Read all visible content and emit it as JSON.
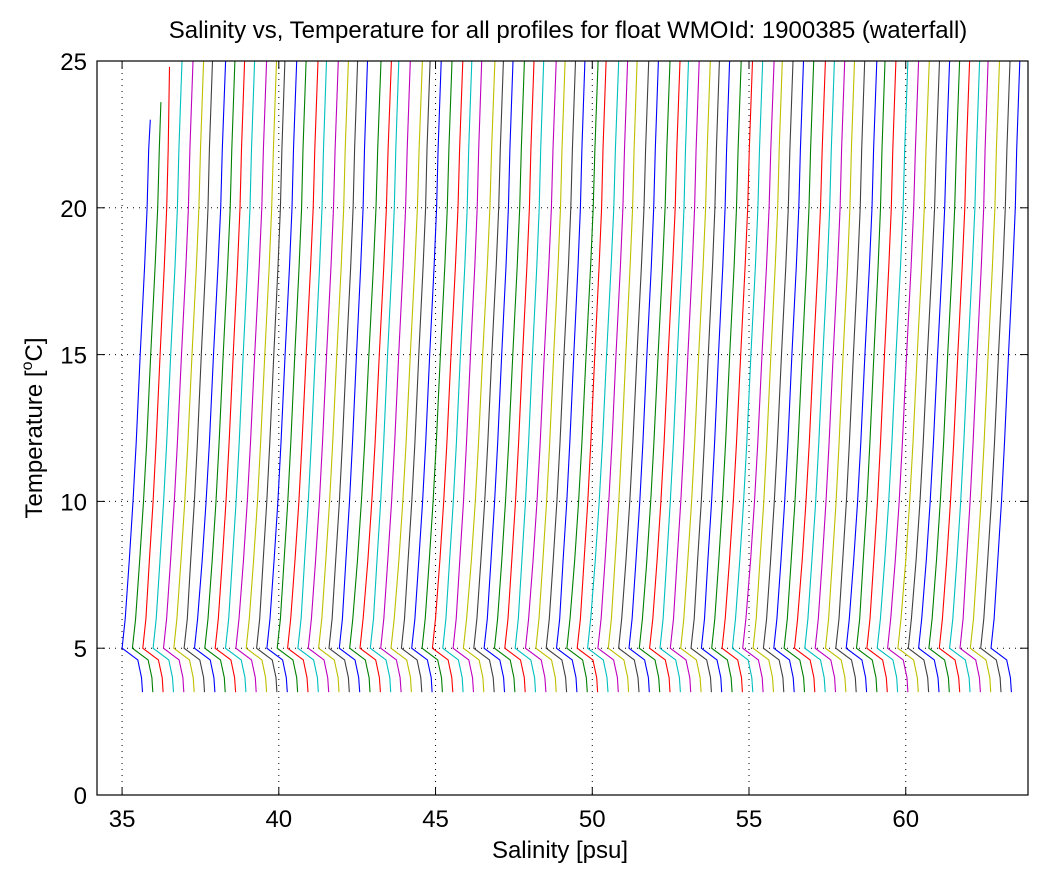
{
  "chart_data": {
    "type": "line",
    "title": "Salinity vs, Temperature for all profiles for float WMOId: 1900385 (waterfall)",
    "xlabel": "Salinity [psu]",
    "ylabel_main": "Temperature [",
    "ylabel_sup": "o",
    "ylabel_end": "C]",
    "xlim": [
      34.2,
      63.9
    ],
    "ylim": [
      0,
      25
    ],
    "xticks": [
      35,
      40,
      45,
      50,
      55,
      60
    ],
    "yticks": [
      0,
      5,
      10,
      15,
      20,
      25
    ],
    "grid": true,
    "waterfall": {
      "profile_count": 85,
      "base_salinity": 34.9,
      "offset_per_profile": 0.33,
      "color_cycle": [
        "#0000ff",
        "#008000",
        "#ff0000",
        "#00bfbf",
        "#bf00bf",
        "#bfbf00",
        "#404040"
      ]
    },
    "profile_shape": {
      "temperature": [
        3.5,
        4.0,
        4.6,
        5.0,
        6.0,
        8.0,
        10.0,
        12.0,
        15.0,
        18.0,
        20.0,
        22.0,
        25.0
      ],
      "salinity_delta": [
        0.75,
        0.72,
        0.6,
        0.1,
        0.2,
        0.33,
        0.45,
        0.55,
        0.68,
        0.82,
        0.9,
        0.95,
        1.05
      ]
    }
  }
}
